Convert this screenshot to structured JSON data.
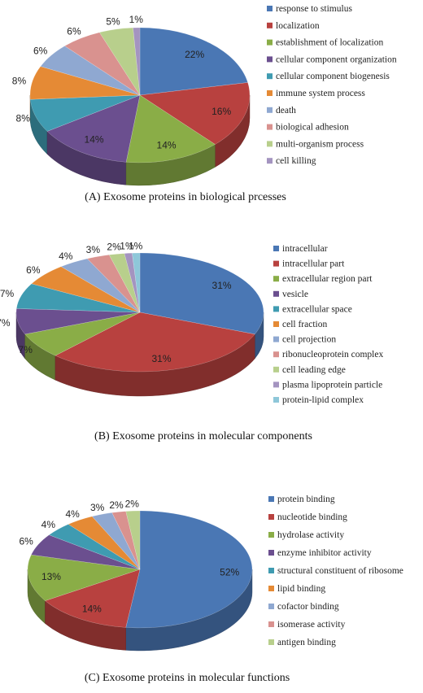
{
  "charts": [
    {
      "chart_data": {
        "type": "pie",
        "title": "(A) Exosome proteins in biological prcesses",
        "labels": [
          "response to stimulus",
          "localization",
          "establishment of localization",
          "cellular component organization",
          "cellular component biogenesis",
          "immune system process",
          "death",
          "biological adhesion",
          "multi-organism process",
          "cell killing"
        ],
        "values": [
          22,
          16,
          14,
          14,
          8,
          8,
          6,
          6,
          5,
          1
        ],
        "value_labels": [
          "22%",
          "16%",
          "14%",
          "14%",
          "8%",
          "8%",
          "6%",
          "6%",
          "5%",
          "1%"
        ],
        "colors": [
          "#4a77b4",
          "#b8413f",
          "#8aad47",
          "#6b4f8f",
          "#3f9bb1",
          "#e58a35",
          "#8fa8d1",
          "#d9928f",
          "#b8cf8c",
          "#a494c0"
        ],
        "legend_position": "right",
        "style": "3d"
      }
    },
    {
      "chart_data": {
        "type": "pie",
        "title": "(B) Exosome proteins in molecular components",
        "labels": [
          "intracellular",
          "intracellular part",
          "extracellular region part",
          "vesicle",
          "extracellular space",
          "cell fraction",
          "cell projection",
          "ribonucleoprotein complex",
          "cell leading edge",
          "plasma lipoprotein particle",
          "protein-lipid complex"
        ],
        "values": [
          31,
          31,
          7,
          7,
          7,
          6,
          4,
          3,
          2,
          1,
          1
        ],
        "value_labels": [
          "31%",
          "31%",
          "7%",
          "7%",
          "7%",
          "6%",
          "4%",
          "3%",
          "2%",
          "1%",
          "1%"
        ],
        "colors": [
          "#4a77b4",
          "#b8413f",
          "#8aad47",
          "#6b4f8f",
          "#3f9bb1",
          "#e58a35",
          "#8fa8d1",
          "#d9928f",
          "#b8cf8c",
          "#a494c0",
          "#8ec7d9"
        ],
        "legend_position": "right",
        "style": "3d"
      }
    },
    {
      "chart_data": {
        "type": "pie",
        "title": "(C) Exosome proteins in molecular functions",
        "labels": [
          "protein binding",
          "nucleotide binding",
          "hydrolase activity",
          "enzyme inhibitor activity",
          "structural constituent of ribosome",
          "lipid binding",
          "cofactor binding",
          "isomerase activity",
          "antigen binding"
        ],
        "values": [
          52,
          14,
          13,
          6,
          4,
          4,
          3,
          2,
          2
        ],
        "value_labels": [
          "52%",
          "14%",
          "13%",
          "6%",
          "4%",
          "4%",
          "3%",
          "2%",
          "2%"
        ],
        "colors": [
          "#4a77b4",
          "#b8413f",
          "#8aad47",
          "#6b4f8f",
          "#3f9bb1",
          "#e58a35",
          "#8fa8d1",
          "#d9928f",
          "#b8cf8c"
        ],
        "legend_position": "right",
        "style": "3d"
      }
    }
  ]
}
